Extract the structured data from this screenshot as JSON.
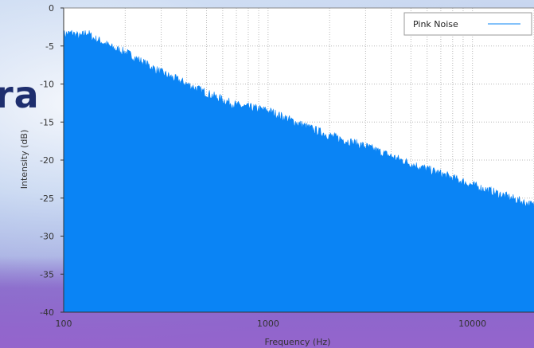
{
  "background": {
    "partial_title": "ra"
  },
  "colors": {
    "fill": "#0a84f5",
    "grid": "#b8b8b8",
    "axis": "#333333"
  },
  "chart_data": {
    "type": "area",
    "title": "",
    "xlabel": "Frequency (Hz)",
    "ylabel": "Intensity (dB)",
    "x_scale": "log",
    "xlim": [
      100,
      20000
    ],
    "ylim": [
      -40,
      0
    ],
    "x_ticks": [
      100,
      1000,
      10000
    ],
    "x_tick_labels": [
      "100",
      "1000",
      "10000"
    ],
    "y_ticks": [
      0,
      -5,
      -10,
      -15,
      -20,
      -25,
      -30,
      -35,
      -40
    ],
    "y_tick_labels": [
      "0",
      "-5",
      "-10",
      "-15",
      "-20",
      "-25",
      "-30",
      "-35",
      "-40"
    ],
    "grid": true,
    "legend": {
      "placement": "top-right",
      "entries": [
        "Pink Noise"
      ]
    },
    "series": [
      {
        "name": "Pink Noise",
        "x": [
          100,
          110,
          120,
          130,
          140,
          150,
          175,
          200,
          250,
          300,
          400,
          500,
          700,
          1000,
          1500,
          2000,
          3000,
          5000,
          7000,
          10000,
          14000,
          20000
        ],
        "y": [
          -3.5,
          -3.3,
          -3.8,
          -3.2,
          -4.0,
          -4.3,
          -5.3,
          -5.8,
          -7.3,
          -8.5,
          -10.0,
          -11.2,
          -12.8,
          -13.5,
          -15.5,
          -16.8,
          -18.2,
          -20.5,
          -21.8,
          -23.3,
          -24.6,
          -26.0
        ]
      }
    ]
  }
}
